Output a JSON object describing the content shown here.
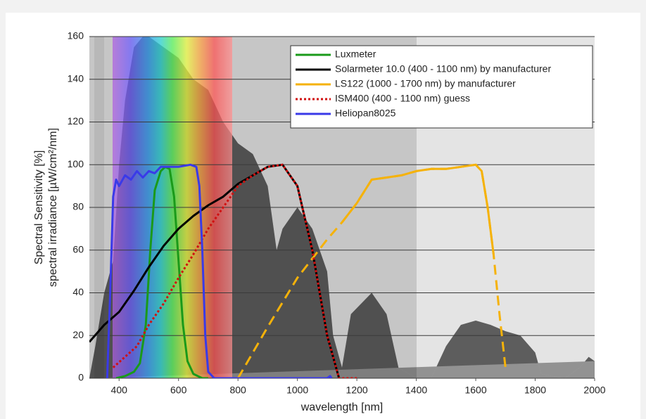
{
  "chart_data": {
    "type": "line",
    "xlabel": "wavelength [nm]",
    "ylabel": [
      "Spectral Sensitivity [%]",
      "spectral irradiance [µW/cm²/nm]"
    ],
    "xlim": [
      300,
      2000
    ],
    "ylim": [
      0,
      160
    ],
    "xticks": [
      400,
      600,
      800,
      1000,
      1200,
      1400,
      1600,
      1800,
      2000
    ],
    "yticks": [
      0,
      20,
      40,
      60,
      80,
      100,
      120,
      140,
      160
    ],
    "grid": true,
    "legend": "top-right",
    "irradiance": {
      "color": "#000000",
      "x": [
        300,
        320,
        350,
        380,
        400,
        420,
        450,
        480,
        500,
        550,
        600,
        650,
        700,
        750,
        800,
        850,
        900,
        930,
        950,
        1000,
        1050,
        1100,
        1120,
        1150,
        1180,
        1250,
        1300,
        1340,
        1400,
        1450,
        1500,
        1550,
        1600,
        1650,
        1700,
        1750,
        1800,
        1820,
        1900,
        1950,
        1980,
        2000
      ],
      "values": [
        0,
        15,
        40,
        55,
        100,
        130,
        155,
        160,
        160,
        155,
        150,
        140,
        135,
        120,
        110,
        105,
        90,
        60,
        70,
        80,
        70,
        50,
        20,
        5,
        30,
        40,
        30,
        5,
        0,
        0,
        15,
        25,
        27,
        25,
        22,
        20,
        12,
        2,
        0,
        5,
        10,
        8
      ]
    },
    "series": [
      {
        "name": "Luxmeter",
        "color": "#1a9a1a",
        "style": "solid",
        "x": [
          390,
          420,
          450,
          470,
          490,
          505,
          520,
          540,
          555,
          570,
          585,
          600,
          615,
          630,
          650,
          680,
          700
        ],
        "values": [
          0,
          1,
          3,
          7,
          25,
          60,
          88,
          97,
          99,
          98,
          85,
          55,
          25,
          8,
          2,
          0,
          0
        ]
      },
      {
        "name": "Solarmeter 10.0 (400 - 1100 nm) by manufacturer",
        "color": "#000000",
        "style": "solid",
        "x": [
          300,
          350,
          400,
          450,
          500,
          550,
          600,
          650,
          700,
          750,
          800,
          850,
          900,
          950,
          1000,
          1050,
          1100,
          1140
        ],
        "values": [
          17,
          25,
          31,
          41,
          52,
          62,
          70,
          76,
          81,
          85,
          91,
          95,
          99,
          100,
          90,
          60,
          20,
          0
        ]
      },
      {
        "name": "LS122 (1000 - 1700 nm) by manufacturer",
        "color": "#f5b20a",
        "style": "dashed",
        "solid_range": [
          1150,
          1660
        ],
        "x": [
          800,
          900,
          1000,
          1100,
          1150,
          1200,
          1250,
          1300,
          1350,
          1400,
          1450,
          1500,
          1550,
          1600,
          1620,
          1640,
          1660,
          1680,
          1700
        ],
        "values": [
          0,
          24,
          47,
          65,
          73,
          82,
          93,
          94,
          95,
          97,
          98,
          98,
          99,
          100,
          97,
          80,
          58,
          30,
          5
        ]
      },
      {
        "name": "ISM400 (400 - 1100 nm) guess",
        "color": "#d01010",
        "style": "dotted",
        "x": [
          380,
          420,
          460,
          500,
          550,
          600,
          650,
          700,
          750,
          800,
          850,
          900,
          950,
          1000,
          1050,
          1100,
          1140,
          1200
        ],
        "values": [
          5,
          10,
          15,
          25,
          35,
          47,
          58,
          70,
          80,
          90,
          95,
          99,
          100,
          90,
          60,
          20,
          0,
          0
        ]
      },
      {
        "name": "Heliopan8025",
        "color": "#3a3ae8",
        "style": "solid",
        "x": [
          360,
          370,
          380,
          390,
          400,
          420,
          440,
          460,
          480,
          500,
          520,
          540,
          560,
          600,
          640,
          660,
          670,
          680,
          690,
          700,
          720,
          800,
          1100,
          1110,
          1115
        ],
        "values": [
          0,
          40,
          85,
          93,
          90,
          95,
          93,
          97,
          94,
          97,
          96,
          99,
          99,
          99,
          100,
          99,
          90,
          60,
          20,
          3,
          0,
          0,
          0,
          1,
          0
        ]
      }
    ]
  }
}
